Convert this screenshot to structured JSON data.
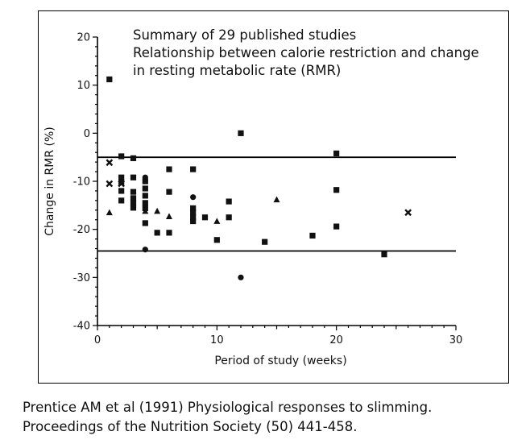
{
  "chart_data": {
    "type": "scatter",
    "title_lines": [
      "Summary of 29 published studies",
      "Relationship between calorie restriction and change",
      "in resting metabolic rate (RMR)"
    ],
    "xlabel": "Period of study (weeks)",
    "ylabel": "Change in RMR (%)",
    "xlim": [
      0,
      30
    ],
    "ylim": [
      -40,
      20
    ],
    "xticks": [
      0,
      10,
      20,
      30
    ],
    "yticks": [
      20,
      10,
      0,
      -10,
      -20,
      -30,
      -40
    ],
    "grid": false,
    "reference_lines_y": [
      -5,
      -24.5
    ],
    "series": [
      {
        "marker": "square",
        "points": [
          [
            1,
            11.2
          ],
          [
            2,
            -4.8
          ],
          [
            2,
            -9.2
          ],
          [
            2,
            -10.2
          ],
          [
            2,
            -12
          ],
          [
            2,
            -14
          ],
          [
            3,
            -5.2
          ],
          [
            3,
            -9.2
          ],
          [
            3,
            -12.2
          ],
          [
            3,
            -13.5
          ],
          [
            3,
            -14.5
          ],
          [
            3,
            -15.5
          ],
          [
            4,
            -10
          ],
          [
            4,
            -11.5
          ],
          [
            4,
            -13
          ],
          [
            4,
            -14.5
          ],
          [
            4,
            -15.6
          ],
          [
            4,
            -18.7
          ],
          [
            5,
            -20.7
          ],
          [
            6,
            -7.5
          ],
          [
            6,
            -12.2
          ],
          [
            6,
            -20.7
          ],
          [
            8,
            -7.5
          ],
          [
            8,
            -15.6
          ],
          [
            8,
            -16.5
          ],
          [
            8,
            -17.5
          ],
          [
            8,
            -18.3
          ],
          [
            9,
            -17.5
          ],
          [
            10,
            -22.2
          ],
          [
            11,
            -14.2
          ],
          [
            11,
            -17.5
          ],
          [
            12,
            0
          ],
          [
            14,
            -22.6
          ],
          [
            18,
            -21.3
          ],
          [
            20,
            -4.2
          ],
          [
            20,
            -11.8
          ],
          [
            20,
            -19.4
          ],
          [
            24,
            -25.2
          ]
        ]
      },
      {
        "marker": "cross",
        "points": [
          [
            1,
            -6.1
          ],
          [
            1,
            -10.5
          ],
          [
            2,
            -10.5
          ],
          [
            26,
            -16.5
          ]
        ]
      },
      {
        "marker": "triangle",
        "points": [
          [
            1,
            -16.5
          ],
          [
            4,
            -16.2
          ],
          [
            5,
            -16.2
          ],
          [
            6,
            -17.3
          ],
          [
            10,
            -18.3
          ],
          [
            15,
            -13.8
          ]
        ]
      },
      {
        "marker": "circle",
        "points": [
          [
            4,
            -9.2
          ],
          [
            4,
            -24.2
          ],
          [
            8,
            -13.3
          ],
          [
            12,
            -30
          ]
        ]
      }
    ]
  },
  "caption": {
    "line1": "Prentice AM et al (1991) Physiological responses to slimming.",
    "line2": "Proceedings of the Nutrition Society (50) 441-458."
  }
}
